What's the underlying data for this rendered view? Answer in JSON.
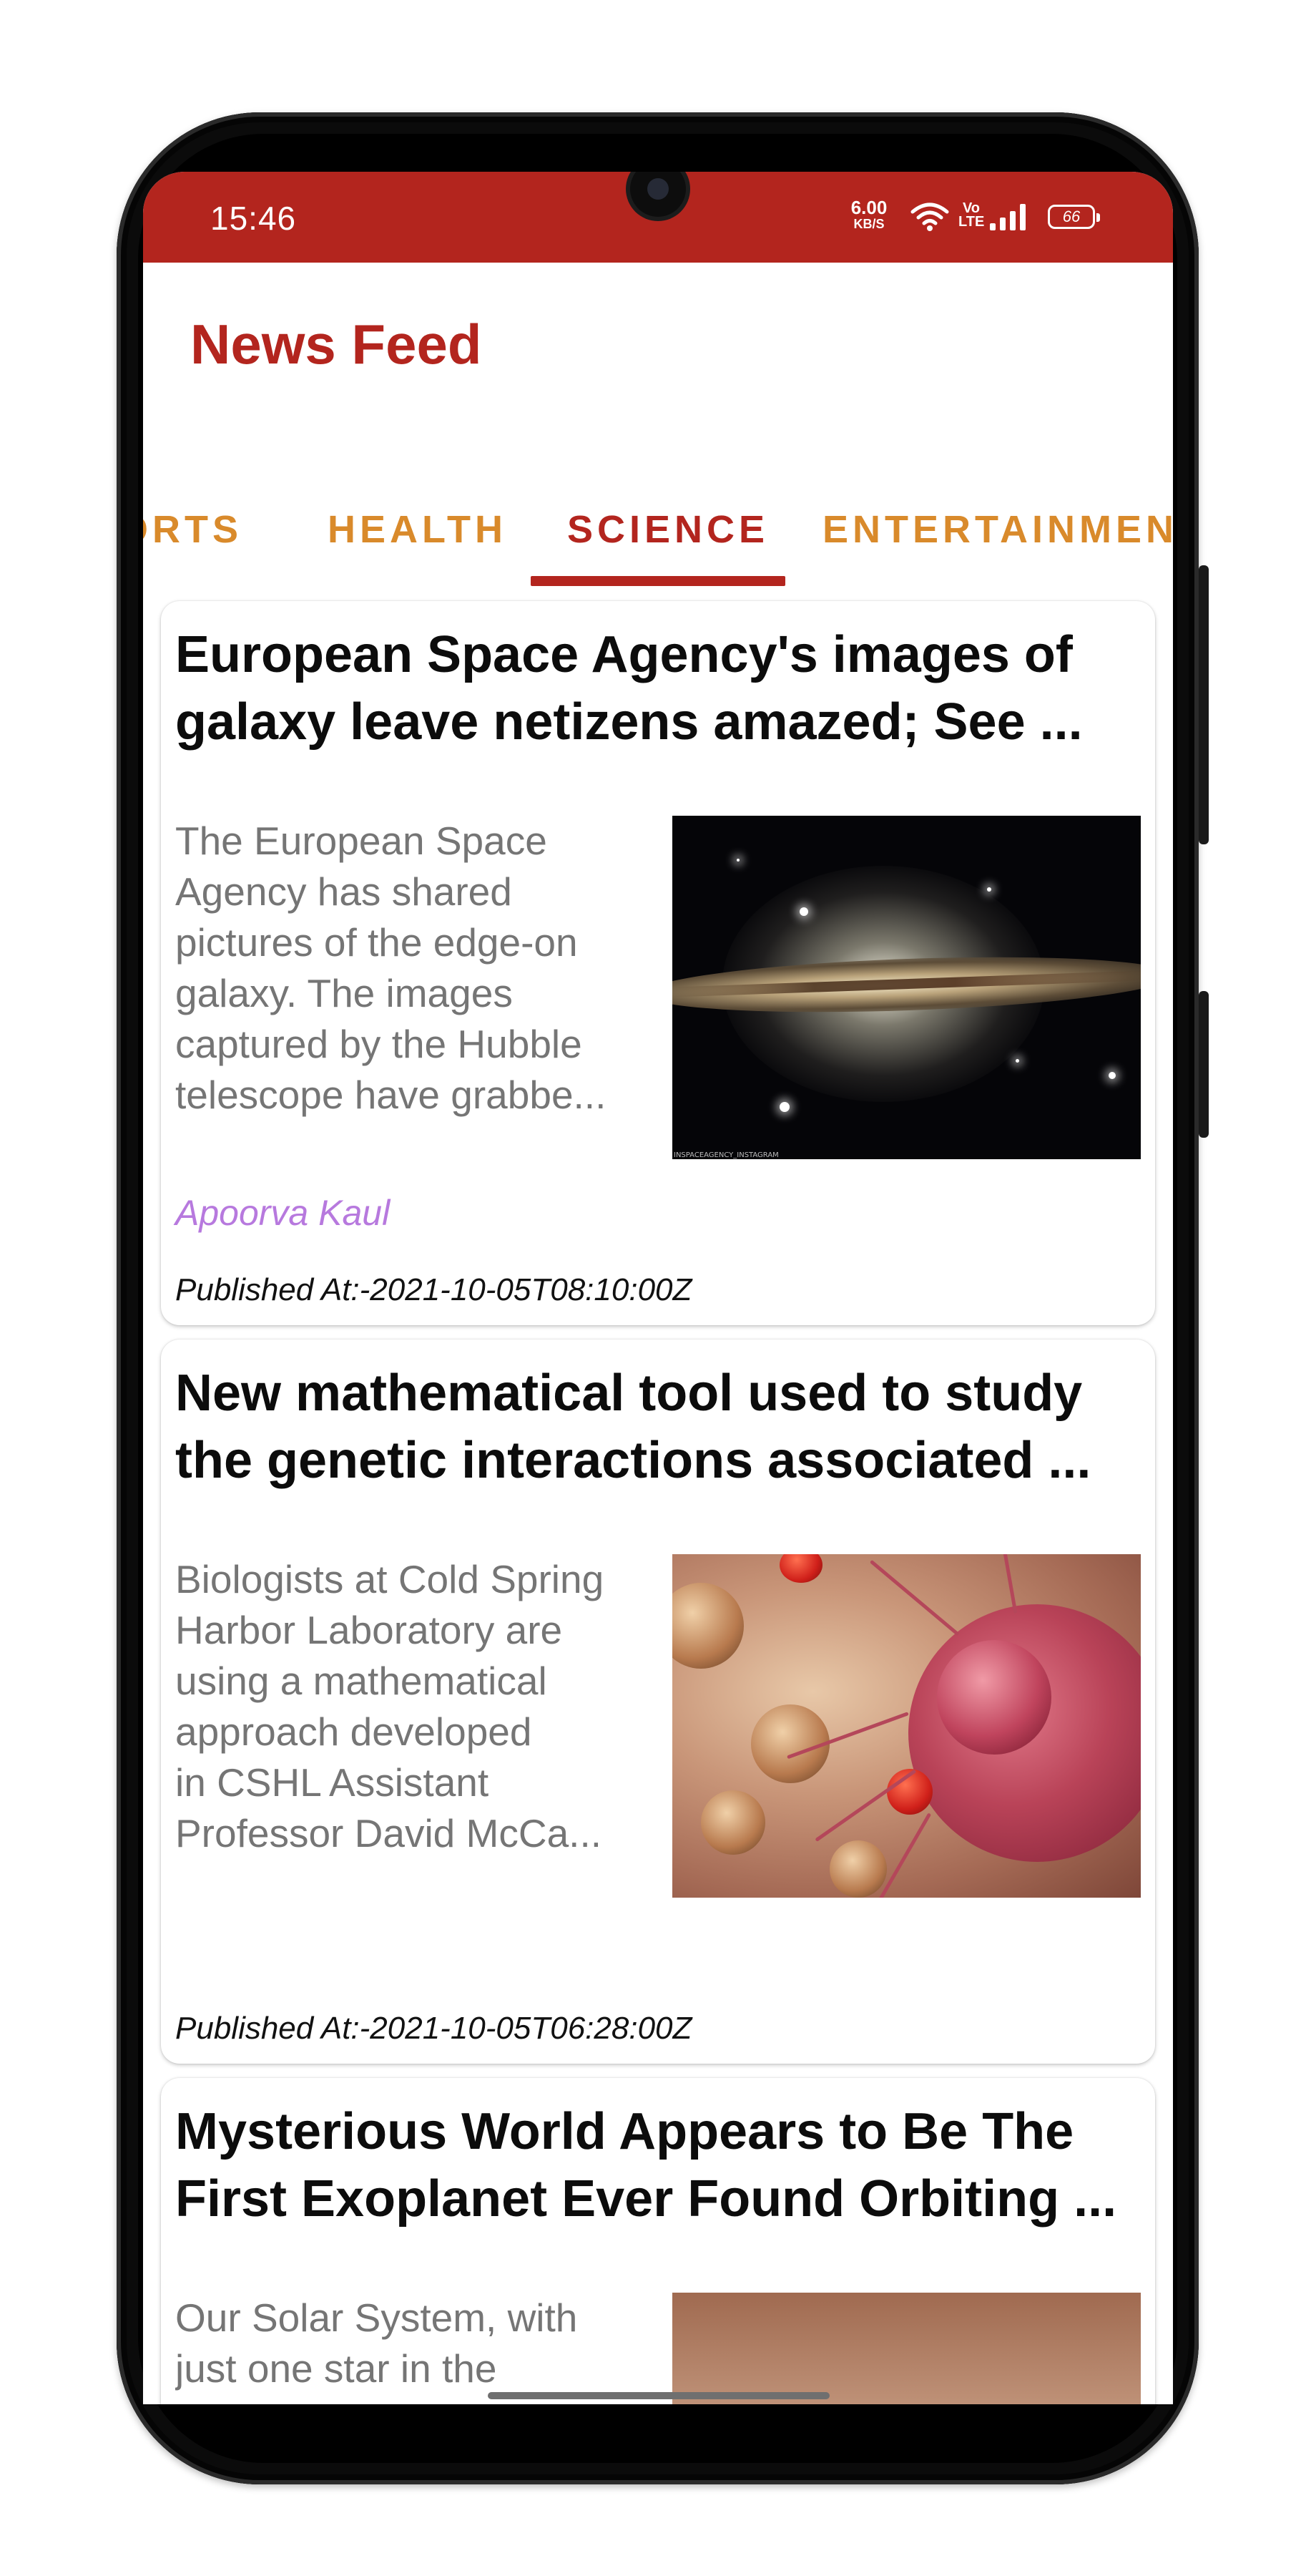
{
  "status_bar": {
    "time": "15:46",
    "net_speed_value": "6.00",
    "net_speed_unit": "KB/S",
    "volte_top": "Vo",
    "volte_bottom": "LTE",
    "battery": "66"
  },
  "app_bar": {
    "title": "News Feed"
  },
  "tabs": {
    "items": [
      {
        "label": "ORTS"
      },
      {
        "label": "HEALTH"
      },
      {
        "label": "SCIENCE"
      },
      {
        "label": "ENTERTAINMENT"
      }
    ],
    "active": "SCIENCE"
  },
  "articles": [
    {
      "title_lines": [
        "European Space Agency's images of",
        "galaxy leave netizens amazed; See ..."
      ],
      "description_lines": [
        "The European Space",
        "Agency has shared",
        "pictures of the edge-on",
        "galaxy. The images",
        "captured by the Hubble",
        "telescope have grabbe..."
      ],
      "image_caption": "INSPACEAGENCY_INSTAGRAM",
      "author": "Apoorva Kaul",
      "published": "Published At:-2021-10-05T08:10:00Z"
    },
    {
      "title_lines": [
        "New mathematical tool used to study",
        "the genetic interactions associated ..."
      ],
      "description_lines": [
        "Biologists at Cold Spring",
        "Harbor Laboratory are",
        "using a mathematical",
        "approach developed",
        "in CSHL Assistant",
        "Professor David McCa..."
      ],
      "author": "",
      "published": "Published At:-2021-10-05T06:28:00Z"
    },
    {
      "title_lines": [
        "Mysterious World Appears to Be The",
        "First Exoplanet Ever Found Orbiting ..."
      ],
      "description_lines": [
        "Our Solar System, with",
        "just one star in the"
      ]
    }
  ],
  "colors": {
    "primary": "#b3251e",
    "tab_inactive": "#d98a2b",
    "author": "#b779de",
    "description": "#757575"
  }
}
